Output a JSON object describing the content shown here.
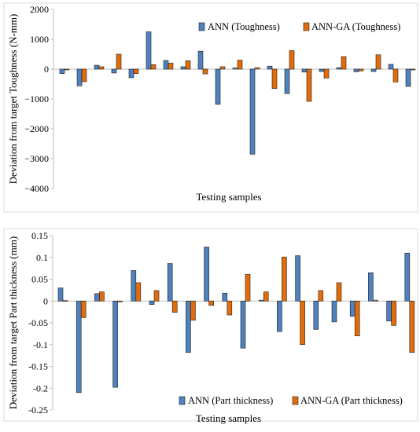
{
  "chart_data": [
    {
      "type": "bar",
      "xlabel": "Testing samples",
      "ylabel": "Deviation from target Toughness (N-mm)",
      "ylim": [
        -4000,
        2000
      ],
      "yticks": [
        2000,
        1000,
        0,
        -1000,
        -2000,
        -3000,
        -4000
      ],
      "ytick_labels": [
        "2000",
        "1000",
        "0",
        "−1000",
        "−2000",
        "−3000",
        "−4000"
      ],
      "grid": false,
      "legend": "top-right",
      "series": [
        {
          "name": "ANN (Toughness)",
          "color": "#4f81bd",
          "values": [
            -150,
            -560,
            130,
            -130,
            -290,
            1250,
            290,
            80,
            600,
            -1180,
            40,
            -2850,
            100,
            -820,
            -100,
            -80,
            50,
            -90,
            -80,
            160,
            -580
          ]
        },
        {
          "name": "ANN-GA (Toughness)",
          "color": "#e36c0a",
          "values": [
            -20,
            -420,
            80,
            500,
            -150,
            150,
            200,
            280,
            -160,
            80,
            300,
            50,
            -650,
            620,
            -1080,
            -300,
            420,
            -60,
            480,
            -430,
            0
          ]
        }
      ]
    },
    {
      "type": "bar",
      "xlabel": "Testing samples",
      "ylabel": "Deviation from target Part thickness (mm)",
      "ylim": [
        -0.25,
        0.15
      ],
      "yticks": [
        0.15,
        0.1,
        0.05,
        0,
        -0.05,
        -0.1,
        -0.15,
        -0.2,
        -0.25
      ],
      "ytick_labels": [
        "0.15",
        "0.1",
        "0.05",
        "0",
        "-0.05",
        "-0.1",
        "-0.15",
        "-0.2",
        "-0.25"
      ],
      "grid": false,
      "legend": "bottom-right",
      "series": [
        {
          "name": "ANN (Part thickness)",
          "color": "#4f81bd",
          "values": [
            0.03,
            -0.21,
            0.017,
            -0.198,
            0.07,
            -0.008,
            0.086,
            -0.118,
            0.124,
            0.018,
            -0.108,
            0.002,
            -0.07,
            0.104,
            -0.065,
            -0.048,
            -0.035,
            0.065,
            -0.046,
            0.11
          ]
        },
        {
          "name": "ANN-GA (Part thickness)",
          "color": "#e36c0a",
          "values": [
            0.001,
            -0.038,
            0.021,
            -0.002,
            0.042,
            0.024,
            -0.026,
            -0.044,
            -0.01,
            -0.032,
            0.061,
            0.021,
            0.101,
            -0.1,
            0.024,
            0.042,
            -0.08,
            0.002,
            -0.056,
            -0.118
          ]
        }
      ]
    }
  ]
}
